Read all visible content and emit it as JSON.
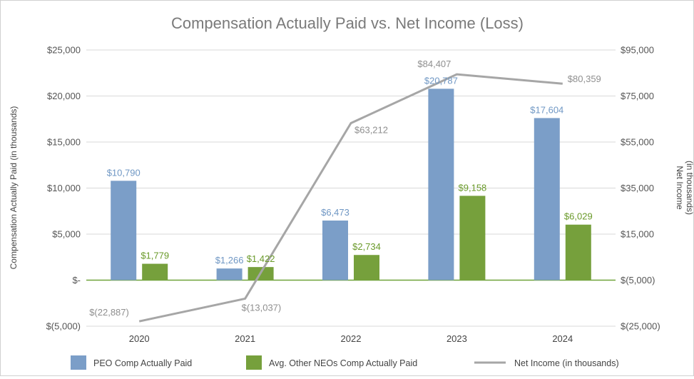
{
  "chart_data": {
    "type": "bar+line",
    "title": "Compensation Actually Paid vs. Net Income (Loss)",
    "categories": [
      "2020",
      "2021",
      "2022",
      "2023",
      "2024"
    ],
    "ylabel_left": "Compensation Actually Paid (in thousands)",
    "ylabel_right_line1": "Net Income",
    "ylabel_right_line2": "(in thousands)",
    "ylim_left": [
      -5000,
      25000
    ],
    "ylim_right": [
      -25000,
      95000
    ],
    "yticks_left": [
      -5000,
      0,
      5000,
      10000,
      15000,
      20000,
      25000
    ],
    "yticks_left_labels": [
      "$(5,000)",
      "$-",
      "$5,000",
      "$10,000",
      "$15,000",
      "$20,000",
      "$25,000"
    ],
    "yticks_right": [
      -25000,
      -5000,
      15000,
      35000,
      55000,
      75000,
      95000
    ],
    "yticks_right_labels": [
      "$(25,000)",
      "$(5,000)",
      "$15,000",
      "$35,000",
      "$55,000",
      "$75,000",
      "$95,000"
    ],
    "grid": true,
    "legend_position": "bottom",
    "colors": {
      "peo": "#7b9ec8",
      "neo": "#76a03c",
      "net": "#a6a6a6",
      "zero_line": "#6fa33a",
      "grid": "#d9d9d9"
    },
    "series": [
      {
        "name": "PEO Comp Actually Paid",
        "kind": "bar",
        "axis": "left",
        "values": [
          10790,
          1266,
          6473,
          20787,
          17604
        ],
        "labels": [
          "$10,790",
          "$1,266",
          "$6,473",
          "$20,787",
          "$17,604"
        ]
      },
      {
        "name": "Avg. Other NEOs Comp Actually Paid",
        "kind": "bar",
        "axis": "left",
        "values": [
          1779,
          1422,
          2734,
          9158,
          6029
        ],
        "labels": [
          "$1,779",
          "$1,422",
          "$2,734",
          "$9,158",
          "$6,029"
        ]
      },
      {
        "name": "Net Income (in thousands)",
        "kind": "line",
        "axis": "right",
        "values": [
          -22887,
          -13037,
          63212,
          84407,
          80359
        ],
        "labels": [
          "$(22,887)",
          "$(13,037)",
          "$63,212",
          "$84,407",
          "$80,359"
        ]
      }
    ]
  }
}
